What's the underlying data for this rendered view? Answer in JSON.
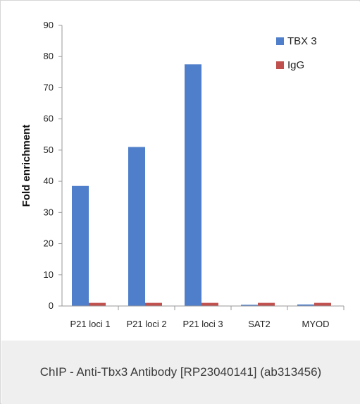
{
  "chart_data": {
    "type": "bar",
    "title": "",
    "xlabel": "",
    "ylabel": "Fold enrichment",
    "ylim": [
      0,
      90
    ],
    "yticks": [
      "0",
      "10",
      "20",
      "30",
      "40",
      "50",
      "60",
      "70",
      "80",
      "90"
    ],
    "categories": [
      "P21 loci 1",
      "P21 loci 2",
      "P21 loci 3",
      "SAT2",
      "MYOD"
    ],
    "series": [
      {
        "name": "TBX 3",
        "color": "#4f7fca",
        "values": [
          38.5,
          51,
          77.5,
          0.4,
          0.5
        ]
      },
      {
        "name": "IgG",
        "color": "#c0504d",
        "values": [
          1.0,
          1.0,
          1.0,
          1.0,
          1.0
        ]
      }
    ],
    "legend_position": "top-right",
    "grid": false
  },
  "caption": "ChIP - Anti-Tbx3 Antibody [RP23040141] (ab313456)"
}
